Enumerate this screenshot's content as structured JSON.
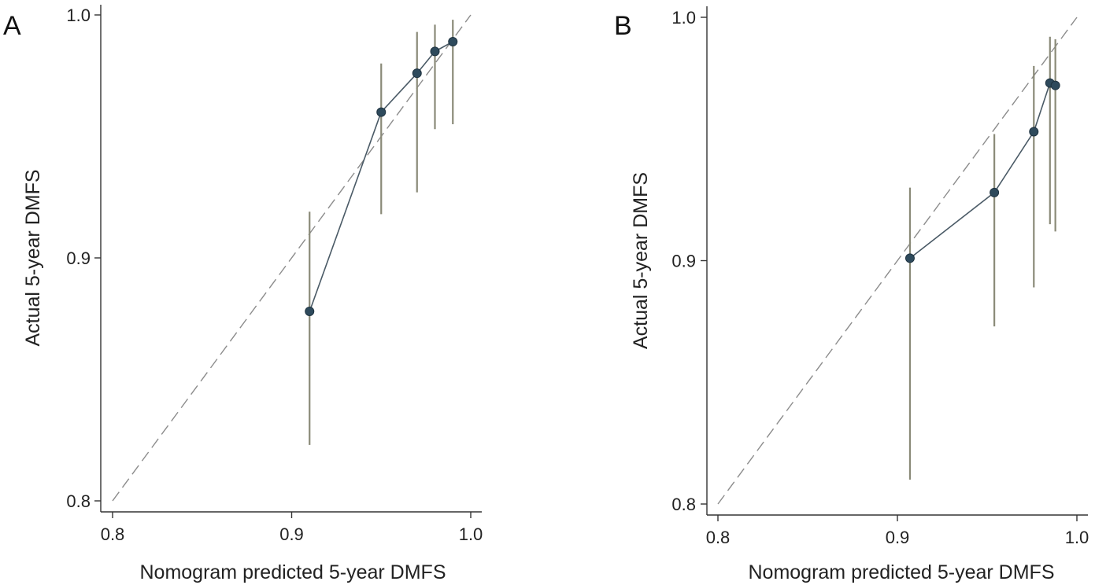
{
  "chart_data": [
    {
      "type": "scatter",
      "panel_label": "A",
      "xlabel": "Nomogram predicted 5-year DMFS",
      "ylabel": "Actual 5-year DMFS",
      "xlim": [
        0.8,
        1.0
      ],
      "ylim": [
        0.8,
        1.0
      ],
      "xticks": [
        "0.8",
        "0.9",
        "1.0"
      ],
      "yticks": [
        "0.8",
        "0.9",
        "1.0"
      ],
      "grid": false,
      "reference_line": {
        "x": [
          0.8,
          1.0
        ],
        "y": [
          0.8,
          1.0
        ],
        "style": "dashed"
      },
      "points": [
        {
          "x": 0.91,
          "y": 0.878,
          "lo": 0.823,
          "hi": 0.919
        },
        {
          "x": 0.95,
          "y": 0.96,
          "lo": 0.918,
          "hi": 0.98
        },
        {
          "x": 0.97,
          "y": 0.976,
          "lo": 0.927,
          "hi": 0.993
        },
        {
          "x": 0.98,
          "y": 0.985,
          "lo": 0.953,
          "hi": 0.996
        },
        {
          "x": 0.99,
          "y": 0.989,
          "lo": 0.955,
          "hi": 0.998
        }
      ],
      "colors": {
        "line": "#4a5a66",
        "marker": "#2e4a5c",
        "errorbar": "#8a8a78",
        "reference": "#8c8c8c"
      }
    },
    {
      "type": "scatter",
      "panel_label": "B",
      "xlabel": "Nomogram predicted 5-year DMFS",
      "ylabel": "Actual 5-year DMFS",
      "xlim": [
        0.8,
        1.0
      ],
      "ylim": [
        0.8,
        1.0
      ],
      "xticks": [
        "0.8",
        "0.9",
        "1.0"
      ],
      "yticks": [
        "0.8",
        "0.9",
        "1.0"
      ],
      "grid": false,
      "reference_line": {
        "x": [
          0.8,
          1.0
        ],
        "y": [
          0.8,
          1.0
        ],
        "style": "dashed"
      },
      "points": [
        {
          "x": 0.907,
          "y": 0.901,
          "lo": 0.81,
          "hi": 0.93
        },
        {
          "x": 0.954,
          "y": 0.928,
          "lo": 0.873,
          "hi": 0.952
        },
        {
          "x": 0.976,
          "y": 0.953,
          "lo": 0.889,
          "hi": 0.98
        },
        {
          "x": 0.985,
          "y": 0.973,
          "lo": 0.915,
          "hi": 0.992
        },
        {
          "x": 0.988,
          "y": 0.972,
          "lo": 0.912,
          "hi": 0.991
        }
      ],
      "colors": {
        "line": "#4a5a66",
        "marker": "#2e4a5c",
        "errorbar": "#8a8a78",
        "reference": "#8c8c8c"
      }
    }
  ]
}
